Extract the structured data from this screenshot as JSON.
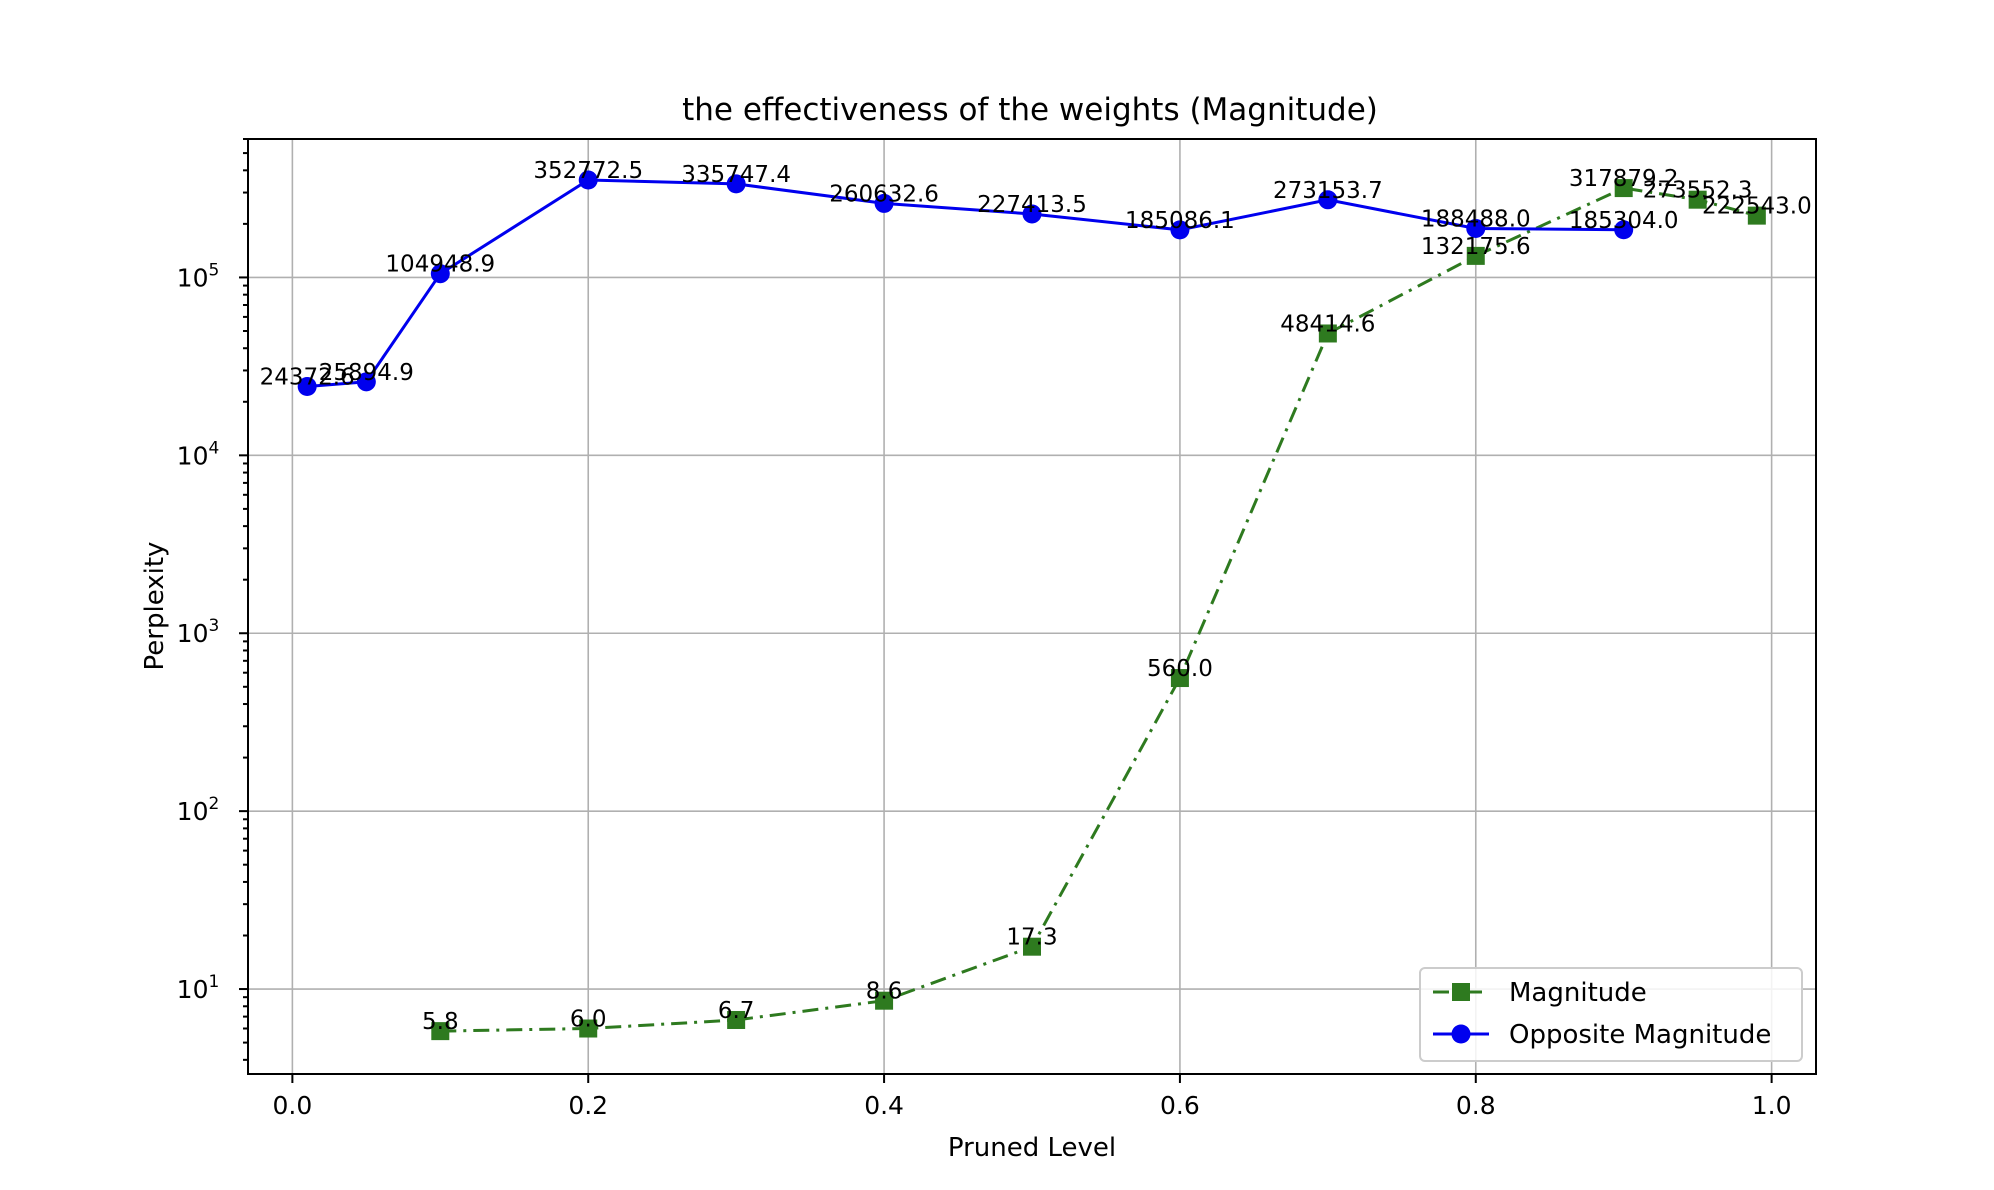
{
  "chart_data": {
    "type": "line",
    "title": "the effectiveness of the weights (Magnitude)",
    "xlabel": "Pruned Level",
    "ylabel": "Perplexity",
    "xlim": [
      -0.03,
      1.03
    ],
    "ylim": [
      3.33,
      600000
    ],
    "yscale": "log",
    "grid": true,
    "legend_position": "lower-right",
    "x_ticks": [
      "0.0",
      "0.2",
      "0.4",
      "0.6",
      "0.8",
      "1.0"
    ],
    "y_ticks": [
      {
        "base": "10",
        "exp": "1"
      },
      {
        "base": "10",
        "exp": "2"
      },
      {
        "base": "10",
        "exp": "3"
      },
      {
        "base": "10",
        "exp": "4"
      },
      {
        "base": "10",
        "exp": "5"
      }
    ],
    "series": [
      {
        "name": "Magnitude",
        "color": "#2e7a1f",
        "marker": "square",
        "line_style": "dash-dot",
        "x": [
          0.1,
          0.2,
          0.3,
          0.4,
          0.5,
          0.6,
          0.7,
          0.8,
          0.9,
          0.95,
          0.99
        ],
        "y": [
          5.8,
          6.0,
          6.7,
          8.6,
          17.3,
          560.0,
          48414.6,
          132175.6,
          317879.2,
          273552.3,
          222543.0
        ],
        "labels": [
          "5.8",
          "6.0",
          "6.7",
          "8.6",
          "17.3",
          "560.0",
          "48414.6",
          "132175.6",
          "317879.2",
          "273552.3",
          "222543.0"
        ]
      },
      {
        "name": "Opposite Magnitude",
        "color": "#0000ee",
        "marker": "circle",
        "line_style": "solid",
        "x": [
          0.01,
          0.05,
          0.1,
          0.2,
          0.3,
          0.4,
          0.5,
          0.6,
          0.7,
          0.8,
          0.9
        ],
        "y": [
          24372.6,
          25894.9,
          104948.9,
          352772.5,
          335747.4,
          260632.6,
          227413.5,
          185086.1,
          273153.7,
          188488.0,
          185304.0
        ],
        "labels": [
          "24372.6",
          "25894.9",
          "104948.9",
          "352772.5",
          "335747.4",
          "260632.6",
          "227413.5",
          "185086.1",
          "273153.7",
          "188488.0",
          "185304.0"
        ]
      }
    ]
  }
}
